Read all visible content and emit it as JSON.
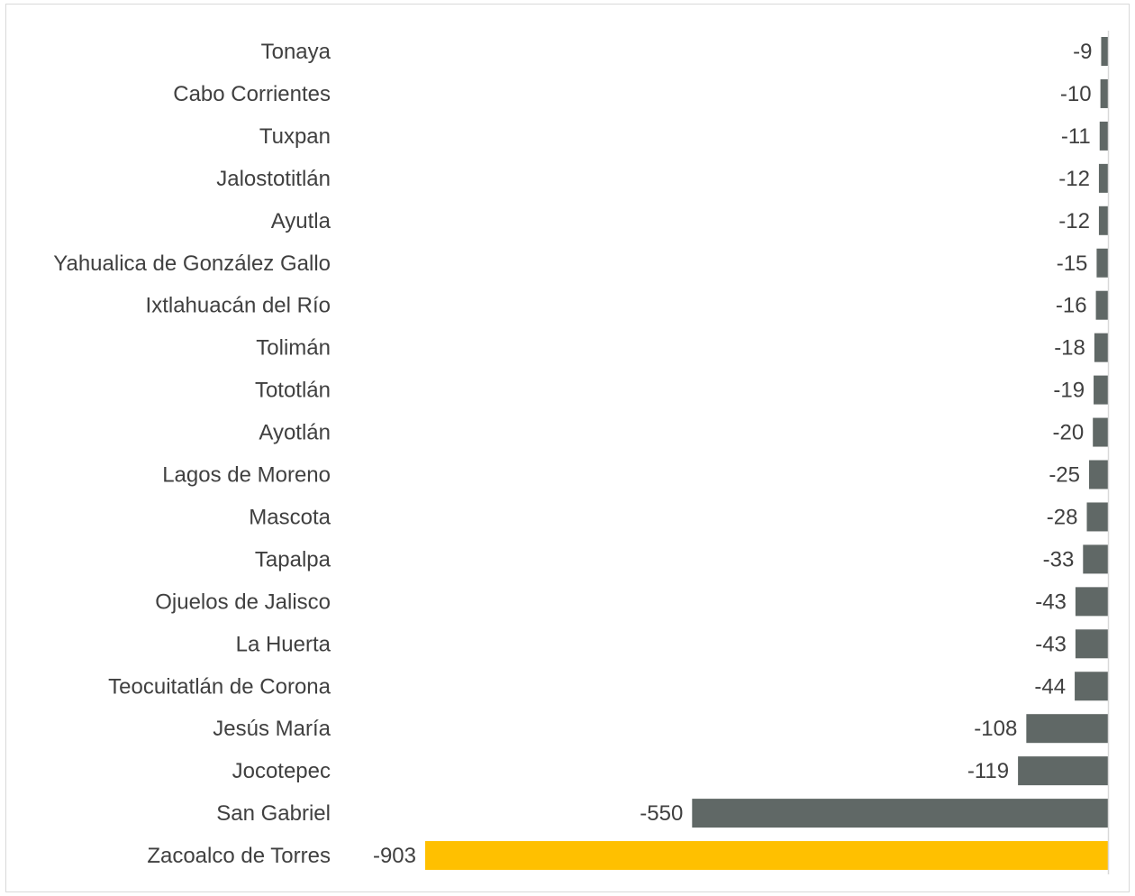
{
  "chart_data": {
    "type": "bar",
    "orientation": "horizontal",
    "categories": [
      "Tonaya",
      "Cabo Corrientes",
      "Tuxpan",
      "Jalostotitlán",
      "Ayutla",
      "Yahualica de González Gallo",
      "Ixtlahuacán del Río",
      "Tolimán",
      "Tototlán",
      "Ayotlán",
      "Lagos de Moreno",
      "Mascota",
      "Tapalpa",
      "Ojuelos de Jalisco",
      "La Huerta",
      "Teocuitatlán de Corona",
      "Jesús María",
      "Jocotepec",
      "San Gabriel",
      "Zacoalco de Torres"
    ],
    "values": [
      -9,
      -10,
      -11,
      -12,
      -12,
      -15,
      -16,
      -18,
      -19,
      -20,
      -25,
      -28,
      -33,
      -43,
      -43,
      -44,
      -108,
      -119,
      -550,
      -903
    ],
    "value_labels": [
      "-9",
      "-10",
      "-11",
      "-12",
      "-12",
      "-15",
      "-16",
      "-18",
      "-19",
      "-20",
      "-25",
      "-28",
      "-33",
      "-43",
      "-43",
      "-44",
      "-108",
      "-119",
      "-550",
      "-903"
    ],
    "xlim": [
      -903,
      0
    ],
    "highlight_category": "Zacoalco de Torres",
    "colors": {
      "bar": "#606866",
      "highlight": "#ffc000",
      "axis": "#d9d9d9",
      "text": "#404040"
    },
    "legend": "none",
    "grid": false
  }
}
